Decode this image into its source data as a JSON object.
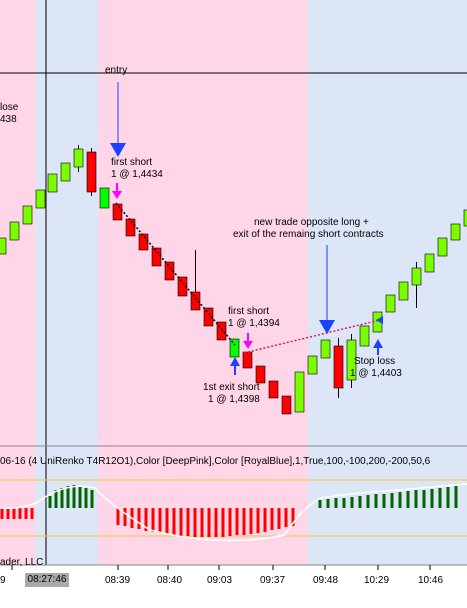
{
  "chart_data": {
    "type": "candlestick",
    "instrument_label": "UniRenko T4R12O1",
    "indicator": {
      "label": "06-16 (4 UniRenko T4R12O1),Color [DeepPink],Color [RoyalBlue],1,True,100,-100,200,-200,50,6",
      "colors": {
        "up": "#006400",
        "down": "#ff0000"
      }
    },
    "copyright": "ader, LLC",
    "time_labels": [
      "9",
      "08:39",
      "08:40",
      "09:03",
      "09:37",
      "09:48",
      "10:29",
      "10:46"
    ],
    "cursor_time": "08:27:46",
    "colors": {
      "up": "#7cfc00",
      "down": "#ff0000",
      "entry_bar": "#00ff00",
      "short_zone": "#ffd6e7",
      "long_zone": "#dde6f6"
    },
    "annotations": {
      "close_label": "lose",
      "close_value": "438",
      "entry": "entry",
      "first_short_a": "first short",
      "first_short_a_price": "1 @ 1,4434",
      "first_short_b": "first short",
      "first_short_b_price": "1 @ 1,4394",
      "first_exit": "1st exit short",
      "first_exit_price": "1 @ 1,4398",
      "new_trade_1": "new trade opposite long +",
      "new_trade_2": "exit of the remaing short contracts",
      "stop_loss": "Stop loss",
      "stop_loss_price": "1 @ 1,4403"
    }
  }
}
